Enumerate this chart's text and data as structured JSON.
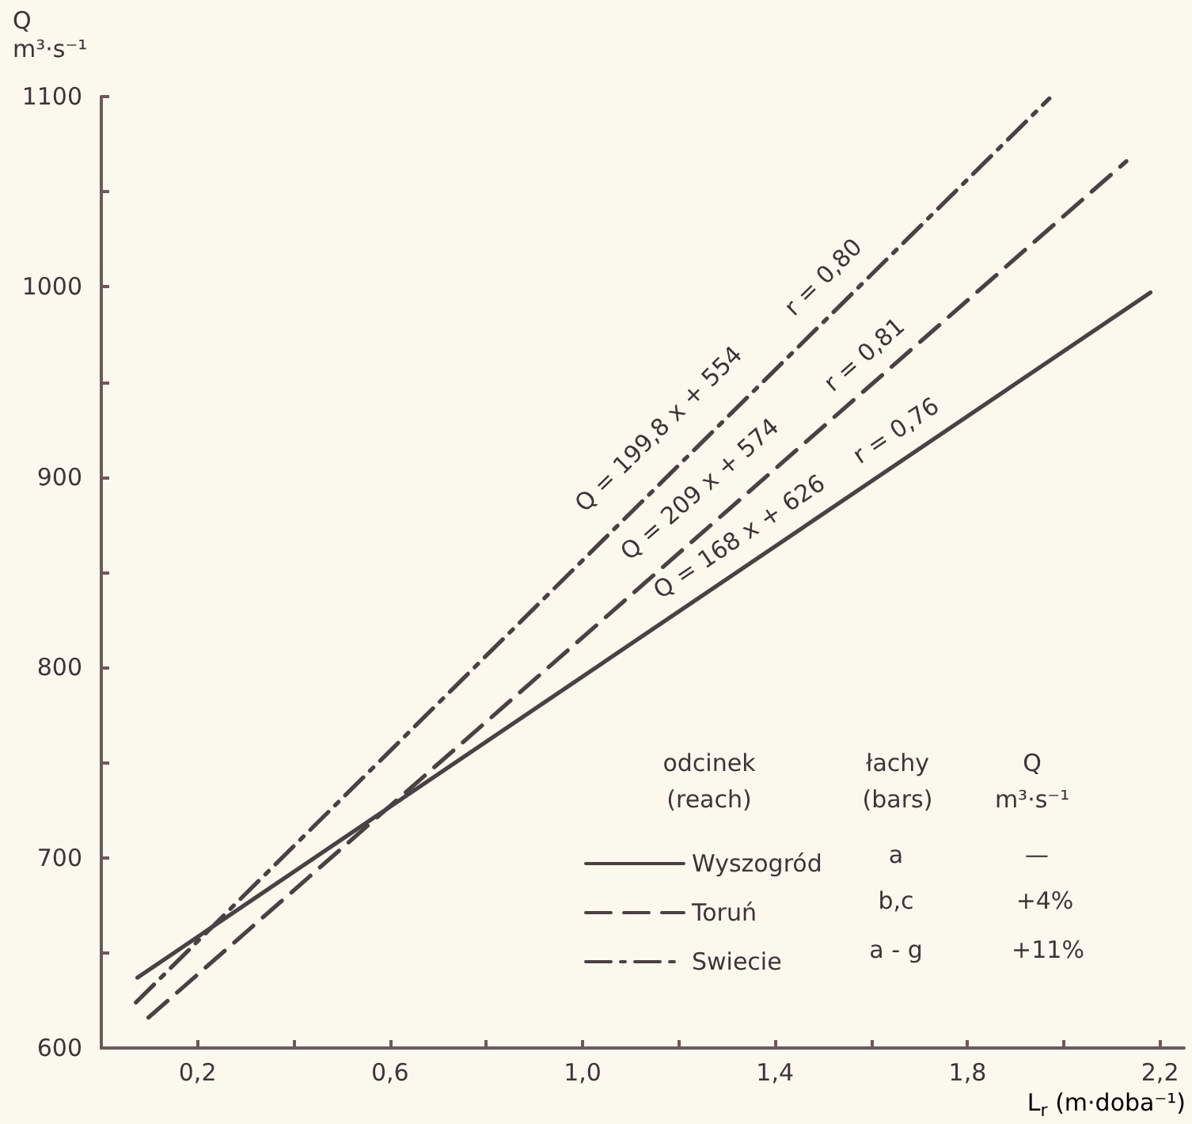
{
  "chart_data": {
    "type": "line",
    "ylabel": "Q\nm³·s⁻¹",
    "xlabel": "L$_{r}$ (m·doba⁻¹)",
    "xlim": [
      0,
      2.25
    ],
    "ylim": [
      600,
      1100
    ],
    "xticks": [
      {
        "value": 0.2,
        "label": "0,2"
      },
      {
        "value": 0.4,
        "label": null
      },
      {
        "value": 0.6,
        "label": "0,6"
      },
      {
        "value": 0.8,
        "label": null
      },
      {
        "value": 1.0,
        "label": "1,0"
      },
      {
        "value": 1.2,
        "label": null
      },
      {
        "value": 1.4,
        "label": "1,4"
      },
      {
        "value": 1.6,
        "label": null
      },
      {
        "value": 1.8,
        "label": "1,8"
      },
      {
        "value": 2.0,
        "label": null
      },
      {
        "value": 2.2,
        "label": "2,2"
      }
    ],
    "yticks": [
      600,
      {
        "value": 650,
        "label": null
      },
      700,
      {
        "value": 750,
        "label": null
      },
      800,
      {
        "value": 850,
        "label": null
      },
      900,
      {
        "value": 950,
        "label": null
      },
      1000,
      {
        "value": 1050,
        "label": null
      },
      1100
    ],
    "series": [
      {
        "name": "Wyszogród",
        "color": "#4a4242",
        "line_style": "solid",
        "x": [
          0.075,
          2.18
        ],
        "values": [
          637,
          997
        ]
      },
      {
        "name": "Toruń",
        "color": "#4a4242",
        "line_style": "dashed",
        "x": [
          0.098,
          2.13
        ],
        "values": [
          616,
          1066
        ]
      },
      {
        "name": "Swiecie",
        "color": "#4a4242",
        "line_style": "dashdot",
        "x": [
          0.072,
          1.97
        ],
        "values": [
          624,
          1099
        ]
      }
    ],
    "annotations": [
      "Q = 199,8 x + 554",
      "r = 0,80",
      "Q = 209 x + 574",
      "r = 0,81",
      "Q = 168 x + 626",
      "r = 0,76",
      "odcinek",
      "(reach)",
      "łachy",
      "(bars)",
      "Q",
      "m³·s⁻¹",
      "a",
      "—",
      "b,c",
      "+4%",
      "a - g",
      "+11%"
    ],
    "legend": "bottom right",
    "marker": "none",
    "grid": false
  }
}
